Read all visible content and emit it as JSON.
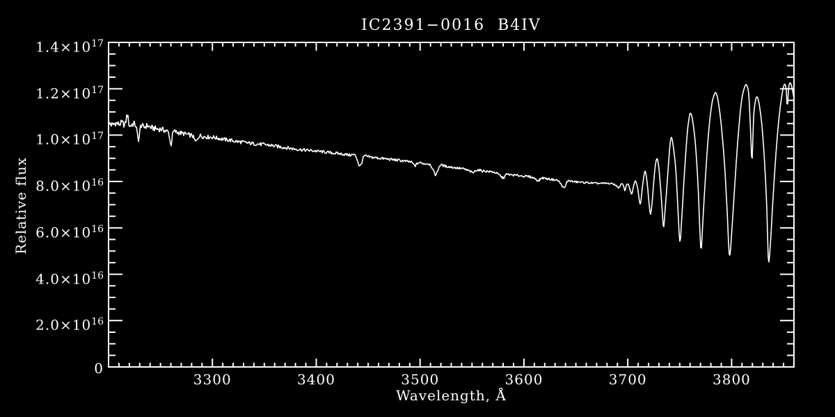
{
  "window": {
    "background": "#000000",
    "foreground": "#ffffff"
  },
  "chart_data": {
    "type": "line",
    "title": "IC2391−0016  B4IV",
    "xlabel": "Wavelength, Å",
    "ylabel": "Relative flux",
    "xlim": [
      3200,
      3860
    ],
    "ylim": [
      0,
      1.4e+17
    ],
    "grid": false,
    "legend": null,
    "x_ticks": {
      "major": [
        3300,
        3400,
        3500,
        3600,
        3700,
        3800
      ],
      "labels": [
        "3300",
        "3400",
        "3500",
        "3600",
        "3700",
        "3800"
      ],
      "minor_step": 10
    },
    "y_ticks": {
      "major": [
        0,
        2e+16,
        4e+16,
        6e+16,
        8e+16,
        1e+17,
        1.2e+17,
        1.4e+17
      ],
      "labels": [
        {
          "base": "0",
          "exp": ""
        },
        {
          "base": "2.0×10",
          "exp": "16"
        },
        {
          "base": "4.0×10",
          "exp": "16"
        },
        {
          "base": "6.0×10",
          "exp": "16"
        },
        {
          "base": "8.0×10",
          "exp": "16"
        },
        {
          "base": "1.0×10",
          "exp": "17"
        },
        {
          "base": "1.2×10",
          "exp": "17"
        },
        {
          "base": "1.4×10",
          "exp": "17"
        }
      ],
      "minor_step": 5000000000000000.0
    },
    "balmer_absorption_lines_A": [
      3691.6,
      3697.2,
      3703.9,
      3712.0,
      3721.9,
      3734.4,
      3750.2,
      3770.6,
      3797.9,
      3835.4
    ],
    "narrow_feature_centers_A": [
      3229,
      3260,
      3284,
      3442,
      3495,
      3515,
      3551,
      3580,
      3614,
      3639,
      3819.6,
      3853.6
    ],
    "series": [
      {
        "name": "flux-spectrum",
        "color": "#ffffff",
        "flux_unit": 1e+16,
        "points": [
          [
            3200,
            10.5
          ],
          [
            3204,
            10.44
          ],
          [
            3207,
            10.52
          ],
          [
            3210,
            10.47
          ],
          [
            3213,
            10.53
          ],
          [
            3216,
            10.46
          ],
          [
            3218,
            10.88
          ],
          [
            3220,
            10.42
          ],
          [
            3223,
            10.47
          ],
          [
            3226,
            10.43
          ],
          [
            3229,
            9.82
          ],
          [
            3231,
            10.4
          ],
          [
            3234,
            10.33
          ],
          [
            3237,
            10.41
          ],
          [
            3240,
            10.34
          ],
          [
            3244,
            10.29
          ],
          [
            3248,
            10.26
          ],
          [
            3252,
            10.24
          ],
          [
            3255,
            10.18
          ],
          [
            3258,
            10.08
          ],
          [
            3260,
            9.58
          ],
          [
            3262,
            10.1
          ],
          [
            3266,
            10.12
          ],
          [
            3270,
            10.08
          ],
          [
            3274,
            10.05
          ],
          [
            3278,
            10.0
          ],
          [
            3281,
            9.96
          ],
          [
            3284,
            9.72
          ],
          [
            3287,
            9.96
          ],
          [
            3291,
            9.94
          ],
          [
            3295,
            9.92
          ],
          [
            3300,
            9.91
          ],
          [
            3306,
            9.86
          ],
          [
            3312,
            9.81
          ],
          [
            3318,
            9.77
          ],
          [
            3324,
            9.72
          ],
          [
            3330,
            9.69
          ],
          [
            3336,
            9.65
          ],
          [
            3342,
            9.62
          ],
          [
            3348,
            9.6
          ],
          [
            3354,
            9.57
          ],
          [
            3360,
            9.53
          ],
          [
            3366,
            9.49
          ],
          [
            3372,
            9.45
          ],
          [
            3378,
            9.41
          ],
          [
            3384,
            9.38
          ],
          [
            3390,
            9.35
          ],
          [
            3396,
            9.33
          ],
          [
            3402,
            9.3
          ],
          [
            3408,
            9.27
          ],
          [
            3414,
            9.24
          ],
          [
            3420,
            9.21
          ],
          [
            3426,
            9.18
          ],
          [
            3432,
            9.14
          ],
          [
            3438,
            9.1
          ],
          [
            3442,
            8.66
          ],
          [
            3446,
            9.08
          ],
          [
            3450,
            9.06
          ],
          [
            3456,
            9.03
          ],
          [
            3462,
            9.0
          ],
          [
            3468,
            8.97
          ],
          [
            3474,
            8.94
          ],
          [
            3480,
            8.91
          ],
          [
            3486,
            8.87
          ],
          [
            3492,
            8.82
          ],
          [
            3495,
            8.68
          ],
          [
            3498,
            8.8
          ],
          [
            3504,
            8.77
          ],
          [
            3510,
            8.72
          ],
          [
            3515,
            8.3
          ],
          [
            3519,
            8.69
          ],
          [
            3524,
            8.66
          ],
          [
            3530,
            8.62
          ],
          [
            3536,
            8.58
          ],
          [
            3542,
            8.54
          ],
          [
            3548,
            8.44
          ],
          [
            3551,
            8.38
          ],
          [
            3554,
            8.49
          ],
          [
            3560,
            8.46
          ],
          [
            3566,
            8.43
          ],
          [
            3572,
            8.39
          ],
          [
            3577,
            8.26
          ],
          [
            3580,
            8.15
          ],
          [
            3583,
            8.3
          ],
          [
            3588,
            8.28
          ],
          [
            3594,
            8.26
          ],
          [
            3600,
            8.23
          ],
          [
            3606,
            8.2
          ],
          [
            3611,
            8.12
          ],
          [
            3614,
            8.03
          ],
          [
            3617,
            8.15
          ],
          [
            3622,
            8.12
          ],
          [
            3628,
            8.08
          ],
          [
            3633,
            8.03
          ],
          [
            3637,
            7.8
          ],
          [
            3639,
            7.72
          ],
          [
            3642,
            8.01
          ],
          [
            3648,
            7.99
          ],
          [
            3654,
            7.97
          ],
          [
            3660,
            7.95
          ],
          [
            3666,
            7.93
          ],
          [
            3672,
            7.92
          ],
          [
            3678,
            7.92
          ],
          [
            3683,
            7.91
          ],
          [
            3687,
            7.88
          ],
          [
            3689.8,
            7.78
          ],
          [
            3691.6,
            7.74
          ],
          [
            3693.5,
            7.88
          ],
          [
            3695.5,
            7.85
          ],
          [
            3697.2,
            7.62
          ],
          [
            3699,
            7.88
          ],
          [
            3700.9,
            7.85
          ],
          [
            3702.3,
            7.62
          ],
          [
            3703.9,
            7.46
          ],
          [
            3705.6,
            7.8
          ],
          [
            3707.6,
            8.02
          ],
          [
            3709.8,
            7.62
          ],
          [
            3712,
            7.02
          ],
          [
            3714.2,
            7.8
          ],
          [
            3716.6,
            8.45
          ],
          [
            3718.9,
            7.85
          ],
          [
            3720.4,
            7.1
          ],
          [
            3721.9,
            6.6
          ],
          [
            3723.6,
            7.2
          ],
          [
            3725.8,
            8.4
          ],
          [
            3727.8,
            8.98
          ],
          [
            3729.6,
            8.72
          ],
          [
            3731.8,
            7.6
          ],
          [
            3733.2,
            6.7
          ],
          [
            3734.4,
            6.0
          ],
          [
            3736,
            6.8
          ],
          [
            3738.3,
            8.2
          ],
          [
            3740.9,
            9.7
          ],
          [
            3742.3,
            9.88
          ],
          [
            3744,
            9.45
          ],
          [
            3746.4,
            8.4
          ],
          [
            3748.3,
            6.8
          ],
          [
            3750.2,
            5.4
          ],
          [
            3752.2,
            6.6
          ],
          [
            3754.6,
            8.4
          ],
          [
            3757.3,
            10.1
          ],
          [
            3759.5,
            10.85
          ],
          [
            3761,
            10.92
          ],
          [
            3763,
            10.45
          ],
          [
            3765.5,
            9.4
          ],
          [
            3767.9,
            7.6
          ],
          [
            3769.3,
            6.0
          ],
          [
            3770.6,
            5.05
          ],
          [
            3772.3,
            6.3
          ],
          [
            3774.8,
            8.2
          ],
          [
            3777.8,
            10.1
          ],
          [
            3780.8,
            11.3
          ],
          [
            3783.3,
            11.75
          ],
          [
            3785.3,
            11.8
          ],
          [
            3787.6,
            11.3
          ],
          [
            3790.3,
            10.3
          ],
          [
            3793.2,
            8.7
          ],
          [
            3795.7,
            6.7
          ],
          [
            3797.9,
            4.8
          ],
          [
            3800.2,
            5.9
          ],
          [
            3802.8,
            7.7
          ],
          [
            3806,
            9.8
          ],
          [
            3809.3,
            11.4
          ],
          [
            3812.3,
            12.05
          ],
          [
            3814.5,
            12.15
          ],
          [
            3816.6,
            11.7
          ],
          [
            3818.4,
            10.0
          ],
          [
            3819.6,
            8.9
          ],
          [
            3821.2,
            10.8
          ],
          [
            3823.2,
            11.55
          ],
          [
            3825,
            11.62
          ],
          [
            3827.2,
            11.15
          ],
          [
            3829.6,
            10.2
          ],
          [
            3832,
            8.6
          ],
          [
            3833.9,
            6.8
          ],
          [
            3835.4,
            4.6
          ],
          [
            3837.3,
            5.3
          ],
          [
            3839.5,
            7.0
          ],
          [
            3842.2,
            8.9
          ],
          [
            3845.3,
            10.6
          ],
          [
            3848.5,
            11.75
          ],
          [
            3851,
            12.2
          ],
          [
            3852.6,
            11.95
          ],
          [
            3853.6,
            11.2
          ],
          [
            3854.8,
            12.0
          ],
          [
            3856.2,
            12.25
          ],
          [
            3857.8,
            12.1
          ],
          [
            3860,
            11.6
          ]
        ]
      }
    ],
    "noise": {
      "anchors": [
        [
          3200,
          0.135
        ],
        [
          3240,
          0.12
        ],
        [
          3270,
          0.1
        ],
        [
          3300,
          0.085
        ],
        [
          3350,
          0.075
        ],
        [
          3400,
          0.065
        ],
        [
          3450,
          0.06
        ],
        [
          3500,
          0.055
        ],
        [
          3550,
          0.05
        ],
        [
          3600,
          0.045
        ],
        [
          3650,
          0.04
        ],
        [
          3685,
          0.035
        ],
        [
          3695,
          0.025
        ],
        [
          3705,
          0.02
        ],
        [
          3730,
          0.015
        ],
        [
          3760,
          0.012
        ],
        [
          3860,
          0.012
        ]
      ]
    }
  }
}
